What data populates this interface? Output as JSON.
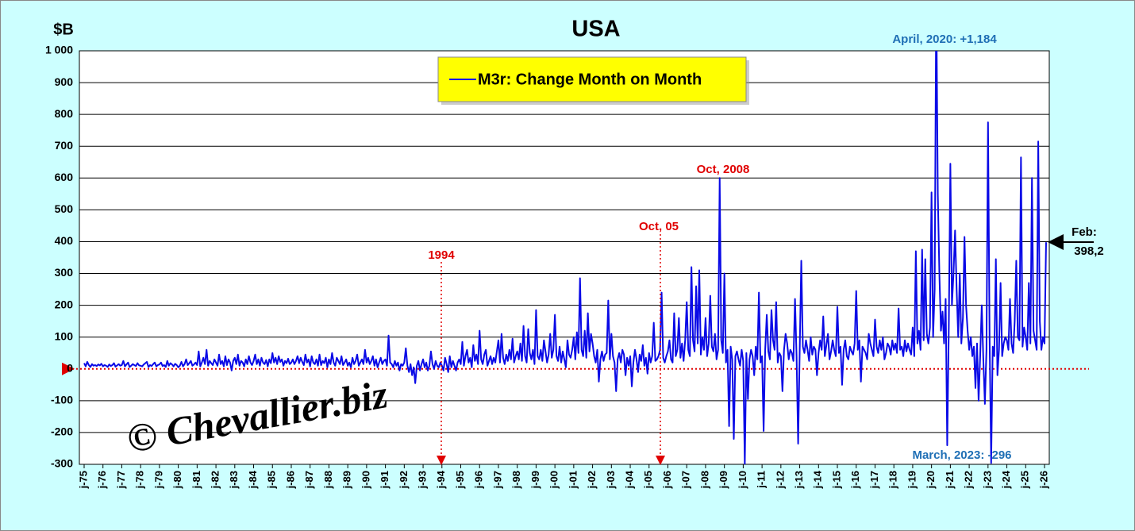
{
  "chart_data": {
    "type": "line",
    "title": "USA",
    "y_label": "$B",
    "annotations": [
      "April, 2020: +1,184",
      "March, 2023: -296",
      "Oct, 2008",
      "Oct, 05",
      "1994",
      "Feb:",
      "398,2",
      "© Chevallier.biz"
    ],
    "categories": [
      "j-75",
      null,
      null,
      null,
      null,
      null,
      null,
      null,
      null,
      null,
      null,
      null,
      "j-76",
      null,
      null,
      null,
      null,
      null,
      null,
      null,
      null,
      null,
      null,
      null,
      "j-77",
      null,
      null,
      null,
      null,
      null,
      null,
      null,
      null,
      null,
      null,
      null,
      "j-78",
      null,
      null,
      null,
      null,
      null,
      null,
      null,
      null,
      null,
      null,
      null,
      "j-79",
      null,
      null,
      null,
      null,
      null,
      null,
      null,
      null,
      null,
      null,
      null,
      "j-80",
      null,
      null,
      null,
      null,
      null,
      null,
      null,
      null,
      null,
      null,
      null,
      "j-81",
      null,
      null,
      null,
      null,
      null,
      null,
      null,
      null,
      null,
      null,
      null,
      "j-82",
      null,
      null,
      null,
      null,
      null,
      null,
      null,
      null,
      null,
      null,
      null,
      "j-83",
      null,
      null,
      null,
      null,
      null,
      null,
      null,
      null,
      null,
      null,
      null,
      "j-84",
      null,
      null,
      null,
      null,
      null,
      null,
      null,
      null,
      null,
      null,
      null,
      "j-85",
      null,
      null,
      null,
      null,
      null,
      null,
      null,
      null,
      null,
      null,
      null,
      "j-86",
      null,
      null,
      null,
      null,
      null,
      null,
      null,
      null,
      null,
      null,
      null,
      "j-87",
      null,
      null,
      null,
      null,
      null,
      null,
      null,
      null,
      null,
      null,
      null,
      "j-88",
      null,
      null,
      null,
      null,
      null,
      null,
      null,
      null,
      null,
      null,
      null,
      "j-89",
      null,
      null,
      null,
      null,
      null,
      null,
      null,
      null,
      null,
      null,
      null,
      "j-90",
      null,
      null,
      null,
      null,
      null,
      null,
      null,
      null,
      null,
      null,
      null,
      "j-91",
      null,
      null,
      null,
      null,
      null,
      null,
      null,
      null,
      null,
      null,
      null,
      "j-92",
      null,
      null,
      null,
      null,
      null,
      null,
      null,
      null,
      null,
      null,
      null,
      "j-93",
      null,
      null,
      null,
      null,
      null,
      null,
      null,
      null,
      null,
      null,
      null,
      "j-94",
      null,
      null,
      null,
      null,
      null,
      null,
      null,
      null,
      null,
      null,
      null,
      "j-95",
      null,
      null,
      null,
      null,
      null,
      null,
      null,
      null,
      null,
      null,
      null,
      "j-96",
      null,
      null,
      null,
      null,
      null,
      null,
      null,
      null,
      null,
      null,
      null,
      "j-97",
      null,
      null,
      null,
      null,
      null,
      null,
      null,
      null,
      null,
      null,
      null,
      "j-98",
      null,
      null,
      null,
      null,
      null,
      null,
      null,
      null,
      null,
      null,
      null,
      "j-99",
      null,
      null,
      null,
      null,
      null,
      null,
      null,
      null,
      null,
      null,
      null,
      "j-00",
      null,
      null,
      null,
      null,
      null,
      null,
      null,
      null,
      null,
      null,
      null,
      "j-01",
      null,
      null,
      null,
      null,
      null,
      null,
      null,
      null,
      null,
      null,
      null,
      "j-02",
      null,
      null,
      null,
      null,
      null,
      null,
      null,
      null,
      null,
      null,
      null,
      "j-03",
      null,
      null,
      null,
      null,
      null,
      null,
      null,
      null,
      null,
      null,
      null,
      "j-04",
      null,
      null,
      null,
      null,
      null,
      null,
      null,
      null,
      null,
      null,
      null,
      "j-05",
      null,
      null,
      null,
      null,
      null,
      null,
      null,
      null,
      null,
      null,
      null,
      "j-06",
      null,
      null,
      null,
      null,
      null,
      null,
      null,
      null,
      null,
      null,
      null,
      "j-07",
      null,
      null,
      null,
      null,
      null,
      null,
      null,
      null,
      null,
      null,
      null,
      "j-08",
      null,
      null,
      null,
      null,
      null,
      null,
      null,
      null,
      null,
      null,
      null,
      "j-09",
      null,
      null,
      null,
      null,
      null,
      null,
      null,
      null,
      null,
      null,
      null,
      "j-10",
      null,
      null,
      null,
      null,
      null,
      null,
      null,
      null,
      null,
      null,
      null,
      "j-11",
      null,
      null,
      null,
      null,
      null,
      null,
      null,
      null,
      null,
      null,
      null,
      "j-12",
      null,
      null,
      null,
      null,
      null,
      null,
      null,
      null,
      null,
      null,
      null,
      "j-13",
      null,
      null,
      null,
      null,
      null,
      null,
      null,
      null,
      null,
      null,
      null,
      "j-14",
      null,
      null,
      null,
      null,
      null,
      null,
      null,
      null,
      null,
      null,
      null,
      "j-15",
      null,
      null,
      null,
      null,
      null,
      null,
      null,
      null,
      null,
      null,
      null,
      "j-16",
      null,
      null,
      null,
      null,
      null,
      null,
      null,
      null,
      null,
      null,
      null,
      "j-17",
      null,
      null,
      null,
      null,
      null,
      null,
      null,
      null,
      null,
      null,
      null,
      "j-18",
      null,
      null,
      null,
      null,
      null,
      null,
      null,
      null,
      null,
      null,
      null,
      "j-19",
      null,
      null,
      null,
      null,
      null,
      null,
      null,
      null,
      null,
      null,
      null,
      "j-20",
      null,
      null,
      null,
      null,
      null,
      null,
      null,
      null,
      null,
      null,
      null,
      "j-21",
      null,
      null,
      null,
      null,
      null,
      null,
      null,
      null,
      null,
      null,
      null,
      "j-22",
      null,
      null,
      null,
      null,
      null,
      null,
      null,
      null,
      null,
      null,
      null,
      "j-23",
      null,
      null,
      null,
      null,
      null,
      null,
      null,
      null,
      null,
      null,
      null,
      "j-24",
      null,
      null,
      null,
      null,
      null,
      null,
      null,
      null,
      null,
      null,
      null,
      "j-25",
      null,
      null,
      null,
      null,
      null,
      null,
      null,
      null,
      null,
      null,
      null,
      "j-26",
      null
    ],
    "series": [
      {
        "name": "M3r: Change Month on Month",
        "color": "#0a0ae6",
        "values": [
          18,
          8,
          22,
          12,
          6,
          15,
          10,
          12,
          9,
          14,
          11,
          16,
          8,
          12,
          10,
          6,
          14,
          9,
          12,
          18,
          7,
          11,
          15,
          10,
          12,
          25,
          8,
          14,
          20,
          6,
          10,
          15,
          12,
          9,
          18,
          11,
          10,
          8,
          14,
          18,
          22,
          6,
          12,
          9,
          15,
          20,
          8,
          12,
          14,
          20,
          9,
          12,
          6,
          25,
          10,
          18,
          14,
          8,
          16,
          12,
          5,
          10,
          22,
          8,
          15,
          30,
          12,
          18,
          25,
          10,
          14,
          20,
          12,
          55,
          8,
          20,
          35,
          15,
          60,
          10,
          25,
          18,
          12,
          30,
          20,
          10,
          45,
          15,
          25,
          8,
          40,
          12,
          30,
          20,
          -5,
          25,
          35,
          15,
          45,
          10,
          25,
          20,
          8,
          30,
          15,
          40,
          20,
          12,
          25,
          45,
          15,
          30,
          10,
          35,
          20,
          15,
          28,
          8,
          30,
          18,
          50,
          20,
          35,
          15,
          40,
          22,
          30,
          10,
          25,
          18,
          32,
          15,
          20,
          30,
          15,
          25,
          40,
          18,
          35,
          22,
          12,
          45,
          20,
          30,
          8,
          40,
          20,
          15,
          30,
          10,
          45,
          12,
          25,
          18,
          35,
          5,
          30,
          15,
          50,
          20,
          10,
          35,
          25,
          15,
          40,
          12,
          20,
          30,
          10,
          20,
          5,
          35,
          15,
          25,
          45,
          10,
          20,
          30,
          15,
          60,
          20,
          35,
          15,
          25,
          40,
          10,
          30,
          5,
          20,
          35,
          15,
          25,
          30,
          10,
          105,
          20,
          15,
          5,
          25,
          10,
          20,
          -5,
          15,
          10,
          20,
          65,
          10,
          -10,
          15,
          -20,
          5,
          -45,
          10,
          25,
          -5,
          15,
          30,
          5,
          20,
          -5,
          10,
          55,
          15,
          0,
          25,
          10,
          5,
          20,
          10,
          -5,
          35,
          15,
          -10,
          40,
          5,
          25,
          10,
          -5,
          20,
          30,
          15,
          85,
          10,
          40,
          60,
          20,
          35,
          5,
          75,
          25,
          45,
          15,
          120,
          30,
          15,
          45,
          60,
          10,
          25,
          40,
          15,
          35,
          20,
          55,
          90,
          20,
          110,
          35,
          15,
          45,
          25,
          60,
          30,
          95,
          20,
          40,
          55,
          30,
          80,
          25,
          135,
          40,
          20,
          125,
          50,
          30,
          60,
          15,
          185,
          40,
          30,
          60,
          25,
          90,
          55,
          20,
          45,
          110,
          35,
          60,
          170,
          40,
          25,
          70,
          20,
          55,
          30,
          5,
          90,
          45,
          35,
          60,
          100,
          30,
          115,
          50,
          285,
          60,
          40,
          120,
          35,
          175,
          55,
          110,
          80,
          40,
          20,
          60,
          -40,
          30,
          55,
          25,
          45,
          50,
          215,
          30,
          110,
          40,
          20,
          -70,
          30,
          50,
          20,
          60,
          45,
          -20,
          35,
          10,
          40,
          -55,
          20,
          60,
          30,
          -10,
          45,
          25,
          75,
          10,
          35,
          -15,
          50,
          20,
          40,
          145,
          25,
          30,
          40,
          60,
          240,
          35,
          20,
          40,
          55,
          90,
          30,
          20,
          175,
          40,
          60,
          160,
          35,
          80,
          25,
          90,
          210,
          60,
          40,
          320,
          90,
          55,
          260,
          80,
          310,
          45,
          100,
          60,
          160,
          40,
          80,
          230,
          70,
          55,
          110,
          30,
          60,
          600,
          90,
          50,
          300,
          20,
          60,
          -180,
          70,
          30,
          -220,
          40,
          55,
          30,
          10,
          60,
          25,
          -300,
          50,
          -95,
          30,
          60,
          40,
          -20,
          70,
          30,
          240,
          20,
          40,
          -195,
          60,
          170,
          55,
          30,
          185,
          90,
          60,
          210,
          20,
          50,
          40,
          -70,
          60,
          110,
          80,
          30,
          60,
          50,
          25,
          220,
          40,
          -235,
          60,
          340,
          70,
          50,
          90,
          60,
          25,
          100,
          45,
          70,
          60,
          -20,
          50,
          90,
          60,
          165,
          40,
          75,
          110,
          30,
          55,
          90,
          60,
          40,
          195,
          50,
          70,
          -50,
          60,
          90,
          40,
          30,
          70,
          55,
          45,
          80,
          245,
          60,
          90,
          -40,
          70,
          60,
          50,
          30,
          110,
          80,
          60,
          40,
          155,
          70,
          50,
          90,
          60,
          100,
          30,
          50,
          80,
          70,
          45,
          90,
          60,
          80,
          50,
          190,
          60,
          70,
          40,
          90,
          55,
          80,
          60,
          45,
          130,
          40,
          370,
          80,
          120,
          60,
          375,
          90,
          345,
          110,
          80,
          130,
          555,
          100,
          250,
          1184,
          550,
          300,
          120,
          180,
          80,
          220,
          -240,
          130,
          645,
          200,
          300,
          435,
          250,
          100,
          300,
          80,
          160,
          415,
          200,
          120,
          60,
          100,
          40,
          70,
          -60,
          80,
          -100,
          40,
          200,
          30,
          -110,
          60,
          775,
          100,
          -296,
          70,
          40,
          345,
          -20,
          60,
          270,
          40,
          80,
          100,
          90,
          60,
          220,
          80,
          50,
          150,
          340,
          100,
          90,
          665,
          70,
          130,
          100,
          60,
          270,
          80,
          600,
          120,
          90,
          60,
          715,
          150,
          60,
          100,
          80,
          398.2
        ]
      }
    ],
    "ylim": [
      -300,
      1000
    ],
    "yticks": [
      -300,
      -200,
      -100,
      0,
      100,
      200,
      300,
      400,
      500,
      600,
      700,
      800,
      900,
      {
        "value": 1000,
        "label": "1 000"
      }
    ],
    "grid": true,
    "legend": "top-center"
  }
}
